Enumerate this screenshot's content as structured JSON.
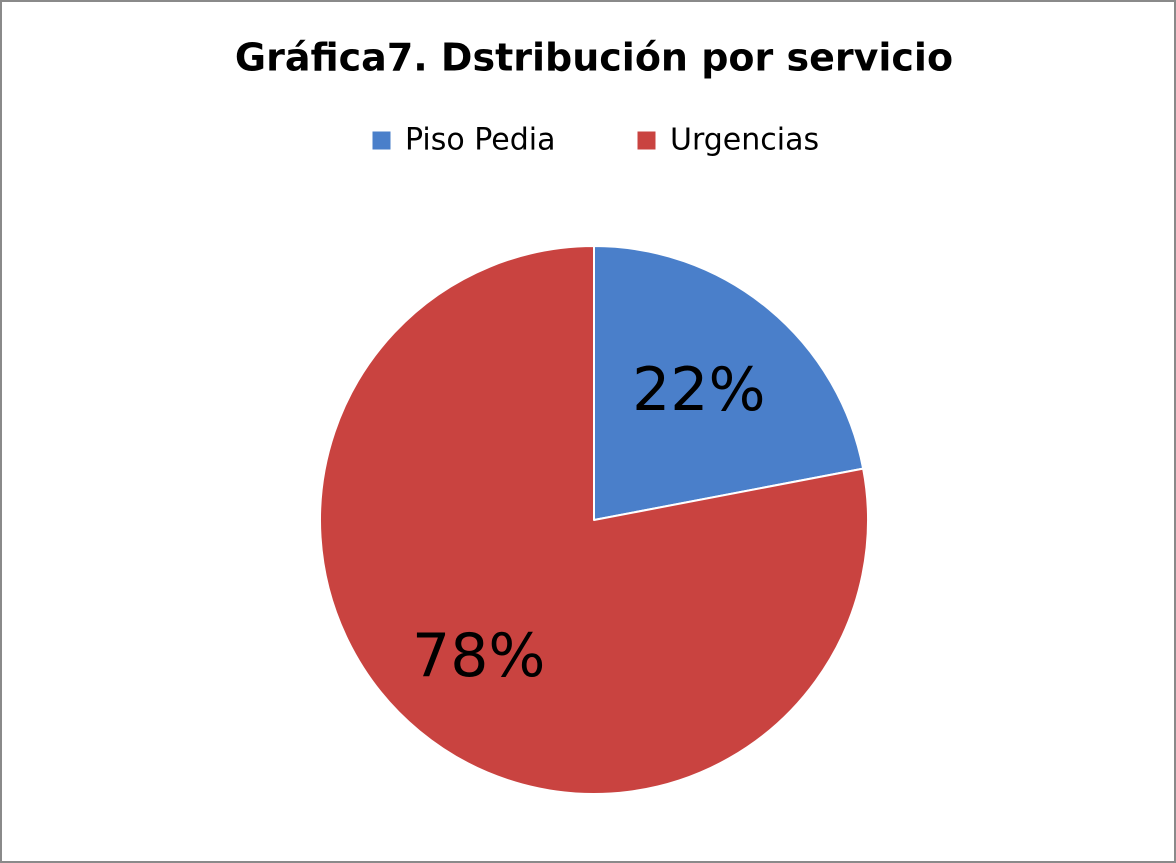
{
  "chart_data": {
    "type": "pie",
    "title": "Gráfica7. Dstribución por servicio",
    "categories": [
      "Piso Pedia",
      "Urgencias"
    ],
    "values": [
      22,
      78
    ],
    "value_labels": [
      "22%",
      "78%"
    ],
    "colors": [
      "#4a7fca",
      "#c94340"
    ],
    "legend": "top"
  }
}
